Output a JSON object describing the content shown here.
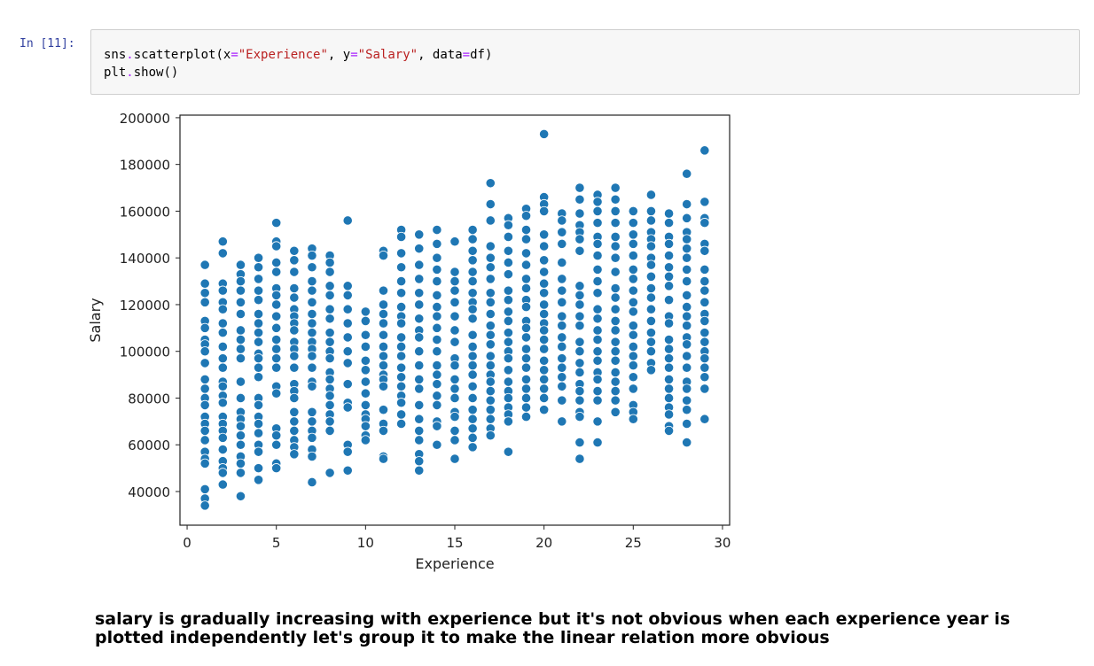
{
  "cell": {
    "prompt": "In [11]:",
    "code_line1": {
      "a": "sns",
      "b": ".",
      "c": "scatterplot(x",
      "d": "=",
      "e": "\"Experience\"",
      "f": ", y",
      "g": "=",
      "h": "\"Salary\"",
      "i": ", data",
      "j": "=",
      "k": "df)"
    },
    "code_line2": {
      "a": "plt",
      "b": ".",
      "c": "show()"
    }
  },
  "chart_data": {
    "type": "scatter",
    "xlabel": "Experience",
    "ylabel": "Salary",
    "xlim": [
      -0.4,
      30.4
    ],
    "ylim": [
      25600,
      201100
    ],
    "xticks": [
      0,
      5,
      10,
      15,
      20,
      25,
      30
    ],
    "yticks": [
      40000,
      60000,
      80000,
      100000,
      120000,
      140000,
      160000,
      180000,
      200000
    ],
    "grid": false,
    "color": "#1f77b4",
    "points_by_experience_thousands": {
      "1": [
        137,
        129,
        125,
        121,
        113,
        110,
        105,
        103,
        100,
        95,
        88,
        84,
        80,
        77,
        72,
        69,
        66,
        62,
        57,
        54,
        52,
        41,
        37,
        34
      ],
      "2": [
        147,
        142,
        129,
        126,
        121,
        118,
        112,
        108,
        102,
        97,
        93,
        87,
        85,
        81,
        78,
        72,
        69,
        66,
        63,
        58,
        53,
        50,
        48,
        43
      ],
      "3": [
        137,
        133,
        130,
        126,
        121,
        116,
        109,
        105,
        101,
        97,
        87,
        80,
        74,
        71,
        68,
        64,
        60,
        55,
        52,
        48,
        38
      ],
      "4": [
        140,
        136,
        131,
        126,
        122,
        116,
        112,
        108,
        104,
        99,
        97,
        93,
        89,
        80,
        77,
        72,
        69,
        65,
        60,
        57,
        50,
        45
      ],
      "5": [
        155,
        147,
        145,
        138,
        134,
        127,
        124,
        120,
        115,
        110,
        105,
        101,
        97,
        93,
        85,
        82,
        67,
        64,
        60,
        52,
        50
      ],
      "6": [
        143,
        139,
        134,
        127,
        123,
        118,
        115,
        112,
        109,
        104,
        101,
        98,
        93,
        86,
        83,
        80,
        74,
        70,
        66,
        62,
        59,
        56
      ],
      "7": [
        144,
        141,
        136,
        130,
        126,
        121,
        116,
        112,
        108,
        104,
        101,
        98,
        93,
        87,
        85,
        74,
        70,
        66,
        63,
        58,
        55,
        44
      ],
      "8": [
        141,
        138,
        134,
        128,
        124,
        118,
        114,
        108,
        104,
        100,
        97,
        91,
        88,
        84,
        81,
        77,
        73,
        70,
        66,
        48
      ],
      "9": [
        156,
        128,
        124,
        118,
        112,
        106,
        100,
        95,
        86,
        78,
        76,
        60,
        57,
        49
      ],
      "10": [
        117,
        113,
        107,
        102,
        96,
        92,
        87,
        82,
        77,
        73,
        71,
        68,
        64,
        62
      ],
      "11": [
        143,
        141,
        126,
        120,
        116,
        112,
        107,
        102,
        98,
        94,
        90,
        88,
        85,
        75,
        69,
        66,
        55,
        54
      ],
      "12": [
        152,
        149,
        142,
        136,
        130,
        125,
        119,
        115,
        112,
        106,
        102,
        98,
        93,
        89,
        85,
        81,
        78,
        73,
        69
      ],
      "13": [
        150,
        144,
        137,
        131,
        125,
        120,
        114,
        109,
        106,
        100,
        94,
        88,
        84,
        77,
        71,
        66,
        62,
        56,
        53,
        49
      ],
      "14": [
        152,
        146,
        140,
        135,
        130,
        124,
        119,
        115,
        110,
        105,
        100,
        94,
        90,
        86,
        81,
        77,
        70,
        68,
        60
      ],
      "15": [
        147,
        134,
        130,
        126,
        121,
        115,
        109,
        104,
        97,
        94,
        88,
        84,
        80,
        74,
        72,
        66,
        62,
        54
      ],
      "16": [
        152,
        148,
        143,
        139,
        134,
        130,
        125,
        121,
        118,
        114,
        107,
        102,
        98,
        94,
        90,
        85,
        80,
        75,
        71,
        67,
        63,
        59
      ],
      "17": [
        172,
        163,
        156,
        145,
        140,
        136,
        131,
        125,
        121,
        116,
        111,
        107,
        103,
        98,
        94,
        90,
        87,
        83,
        79,
        75,
        71,
        67,
        64
      ],
      "18": [
        157,
        154,
        149,
        143,
        138,
        133,
        126,
        122,
        117,
        113,
        108,
        104,
        100,
        97,
        92,
        87,
        83,
        80,
        76,
        73,
        70,
        57
      ],
      "19": [
        161,
        158,
        152,
        148,
        142,
        137,
        131,
        127,
        122,
        119,
        113,
        110,
        106,
        101,
        97,
        93,
        88,
        84,
        80,
        76,
        72
      ],
      "20": [
        193,
        166,
        163,
        160,
        150,
        145,
        139,
        134,
        129,
        125,
        120,
        116,
        112,
        109,
        105,
        101,
        96,
        92,
        88,
        84,
        80,
        75
      ],
      "21": [
        159,
        156,
        151,
        146,
        138,
        131,
        126,
        121,
        115,
        111,
        106,
        102,
        97,
        93,
        89,
        85,
        79,
        70
      ],
      "22": [
        170,
        165,
        159,
        154,
        151,
        148,
        143,
        128,
        124,
        120,
        115,
        111,
        104,
        100,
        95,
        91,
        86,
        83,
        79,
        74,
        72,
        61,
        54
      ],
      "23": [
        167,
        164,
        160,
        155,
        149,
        146,
        141,
        135,
        130,
        125,
        118,
        114,
        109,
        105,
        100,
        96,
        91,
        88,
        83,
        79,
        70,
        61
      ],
      "24": [
        170,
        165,
        160,
        155,
        149,
        145,
        140,
        134,
        127,
        123,
        118,
        113,
        109,
        104,
        100,
        96,
        91,
        87,
        83,
        79,
        74
      ],
      "25": [
        160,
        155,
        150,
        146,
        141,
        135,
        131,
        126,
        121,
        117,
        111,
        107,
        102,
        98,
        94,
        89,
        84,
        77,
        74,
        71
      ],
      "26": [
        167,
        160,
        156,
        151,
        148,
        145,
        140,
        137,
        132,
        127,
        123,
        118,
        113,
        108,
        104,
        100,
        95,
        92
      ],
      "27": [
        159,
        155,
        149,
        146,
        141,
        136,
        132,
        128,
        122,
        115,
        112,
        105,
        101,
        97,
        93,
        88,
        84,
        80,
        76,
        73,
        68,
        66
      ],
      "28": [
        176,
        163,
        157,
        151,
        148,
        144,
        140,
        135,
        130,
        124,
        119,
        115,
        111,
        106,
        103,
        98,
        93,
        87,
        84,
        79,
        75,
        69,
        61
      ],
      "29": [
        186,
        164,
        157,
        155,
        146,
        143,
        135,
        130,
        126,
        121,
        116,
        113,
        108,
        104,
        100,
        97,
        93,
        89,
        84,
        71
      ]
    }
  },
  "markdown": {
    "text": "salary is gradually increasing with experience but it's not obvious when each experience year is plotted independently let's group it to make the linear relation more obvious"
  }
}
